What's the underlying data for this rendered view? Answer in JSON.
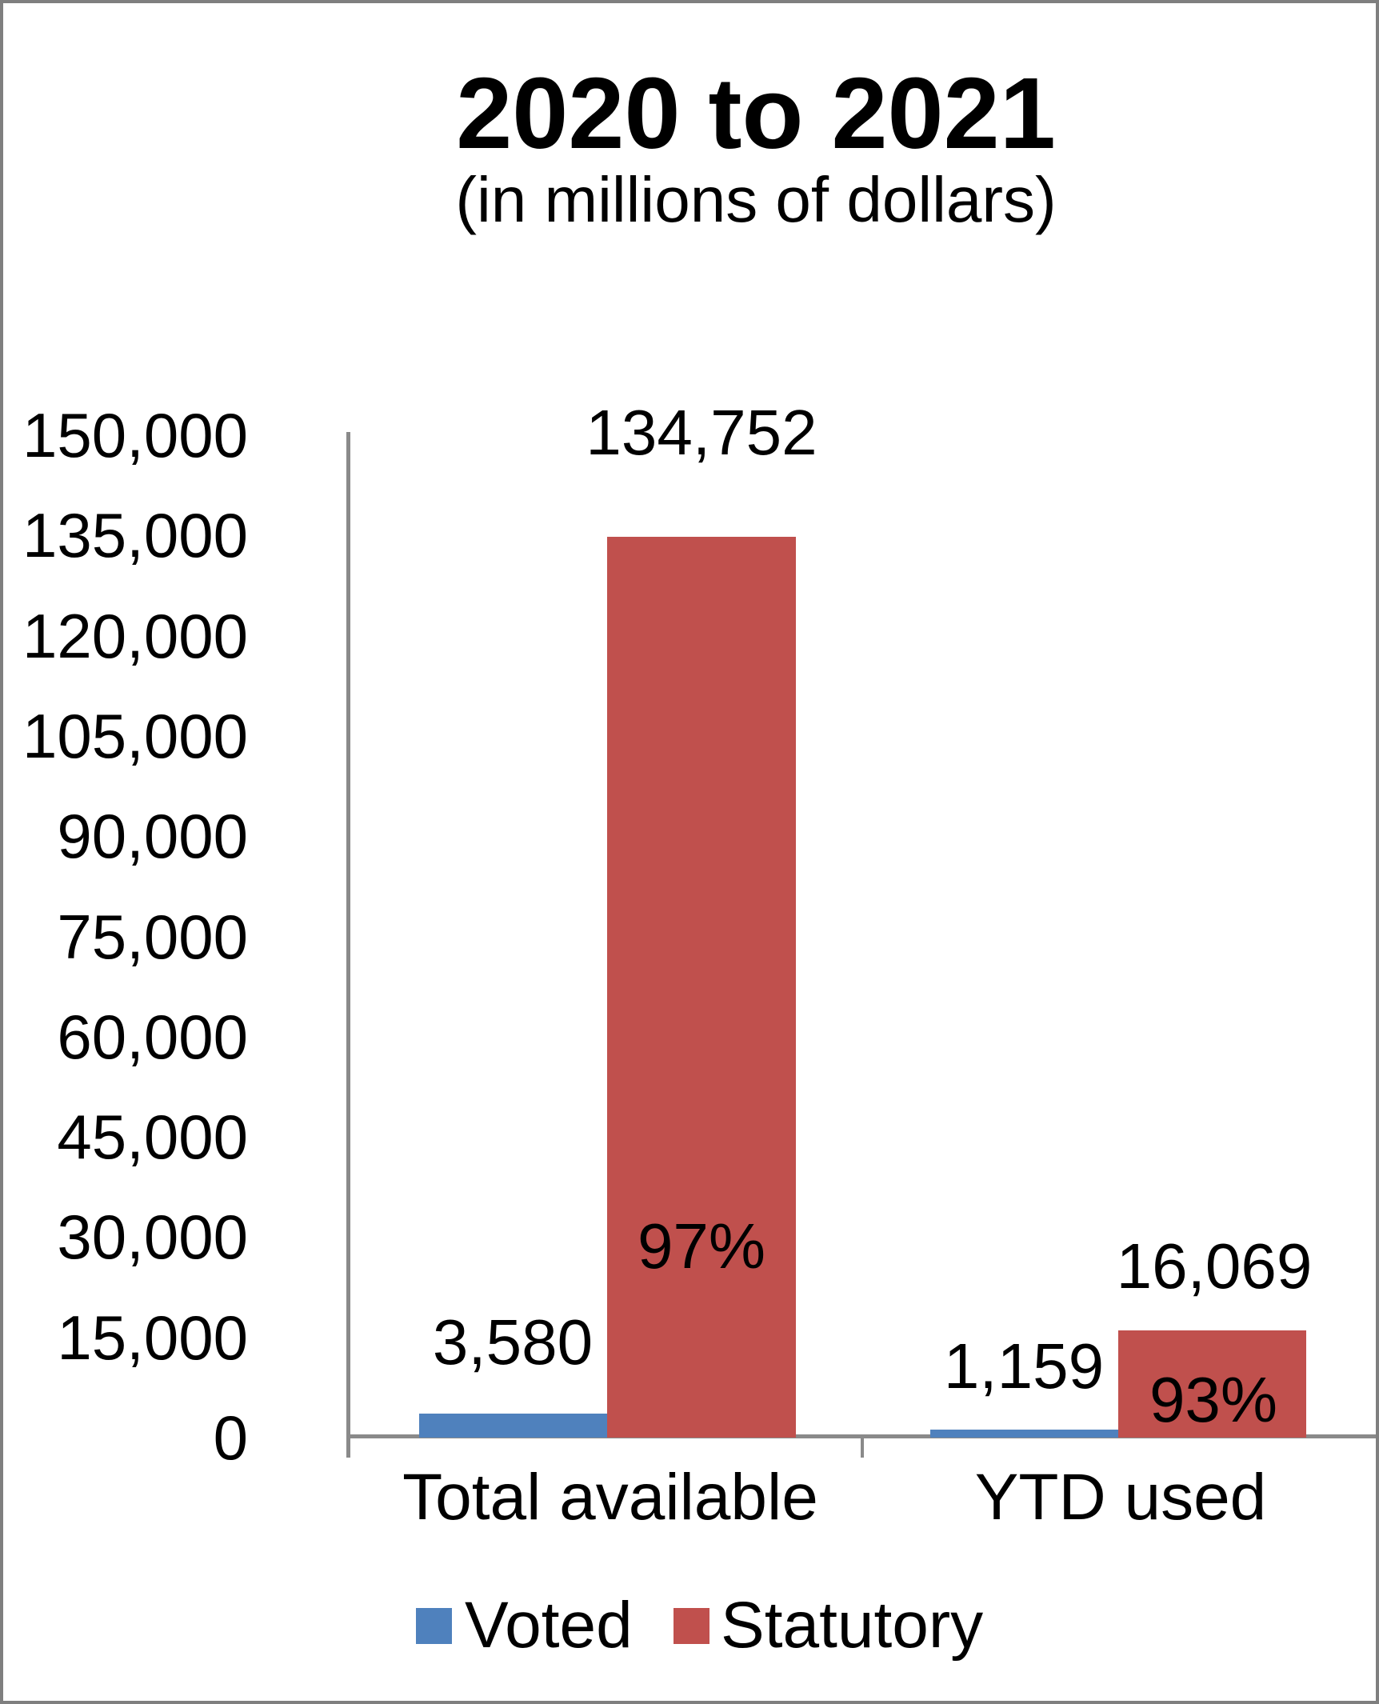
{
  "chart_data": {
    "type": "bar",
    "title": "2020 to 2021",
    "subtitle": "(in millions of dollars)",
    "categories": [
      "Total available",
      "YTD used"
    ],
    "series": [
      {
        "name": "Voted",
        "color": "#4f81bd",
        "values": [
          3580,
          1159
        ],
        "value_labels": [
          "3,580",
          "1,159"
        ]
      },
      {
        "name": "Statutory",
        "color": "#c0504d",
        "values": [
          134752,
          16069
        ],
        "value_labels": [
          "134,752",
          "16,069"
        ],
        "percent_labels": [
          "97%",
          "93%"
        ]
      }
    ],
    "ylim": [
      0,
      150000
    ],
    "ytick_interval": 15000,
    "ytick_labels": [
      "150,000",
      "135,000",
      "120,000",
      "105,000",
      "90,000",
      "75,000",
      "60,000",
      "45,000",
      "30,000",
      "15,000",
      "0"
    ],
    "grid": false,
    "legend_position": "bottom",
    "bar_label_position": "outside-end"
  },
  "colors": {
    "voted": "#4f81bd",
    "statutory": "#c0504d",
    "axis_line": "#8a8a8a",
    "frame_border": "#7f7f7f",
    "background": "#ffffff",
    "text": "#000000"
  }
}
